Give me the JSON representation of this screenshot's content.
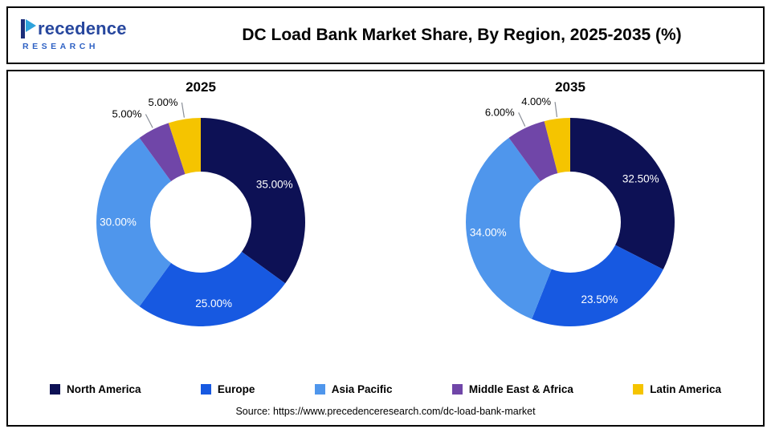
{
  "page": {
    "title": "DC Load Bank Market Share, By Region, 2025-2035 (%)",
    "source": "Source: https://www.precedenceresearch.com/dc-load-bank-market"
  },
  "brand": {
    "word_rest": "recedence",
    "sub": "RESEARCH"
  },
  "legend": {
    "items": [
      {
        "label": "North America",
        "color": "#0d1155"
      },
      {
        "label": "Europe",
        "color": "#1759e1"
      },
      {
        "label": "Asia Pacific",
        "color": "#4f96ec"
      },
      {
        "label": "Middle East & Africa",
        "color": "#7046a8"
      },
      {
        "label": "Latin America",
        "color": "#f5c400"
      }
    ]
  },
  "chart_data": [
    {
      "type": "pie",
      "variant": "donut",
      "title": "2025",
      "categories": [
        "North America",
        "Europe",
        "Asia Pacific",
        "Middle East & Africa",
        "Latin America"
      ],
      "values": [
        35,
        25,
        30,
        5,
        5
      ],
      "value_labels": [
        "35.00%",
        "25.00%",
        "30.00%",
        "5.00%",
        "5.00%"
      ],
      "colors": [
        "#0d1155",
        "#1759e1",
        "#4f96ec",
        "#7046a8",
        "#f5c400"
      ],
      "legend_position": "bottom"
    },
    {
      "type": "pie",
      "variant": "donut",
      "title": "2035",
      "categories": [
        "North America",
        "Europe",
        "Asia Pacific",
        "Middle East & Africa",
        "Latin America"
      ],
      "values": [
        32.5,
        23.5,
        34,
        6,
        4
      ],
      "value_labels": [
        "32.50%",
        "23.50%",
        "34.00%",
        "6.00%",
        "4.00%"
      ],
      "colors": [
        "#0d1155",
        "#1759e1",
        "#4f96ec",
        "#7046a8",
        "#f5c400"
      ],
      "legend_position": "bottom"
    }
  ]
}
